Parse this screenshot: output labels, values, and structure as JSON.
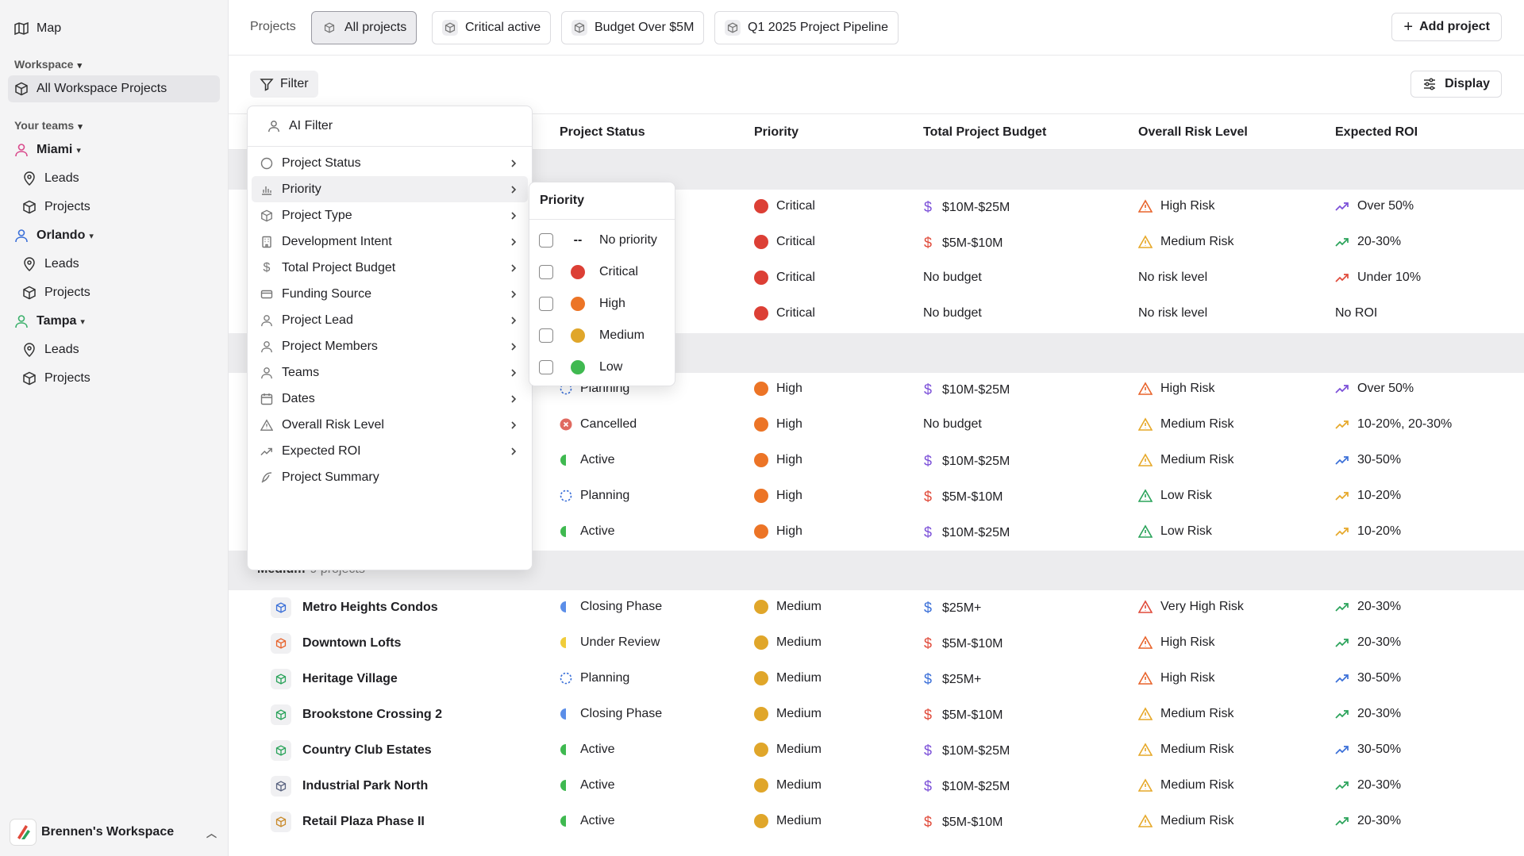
{
  "sidebar": {
    "map": "Map",
    "workspace_section": "Workspace",
    "all_workspace_projects": "All Workspace Projects",
    "teams_section": "Your teams",
    "teams": [
      {
        "name": "Miami",
        "color": "#d94a8c",
        "leads": "Leads",
        "projects": "Projects"
      },
      {
        "name": "Orlando",
        "color": "#3a6fd8",
        "leads": "Leads",
        "projects": "Projects"
      },
      {
        "name": "Tampa",
        "color": "#3bb06b",
        "leads": "Leads",
        "projects": "Projects"
      }
    ],
    "workspace_name": "Brennen's Workspace"
  },
  "topbar": {
    "label": "Projects",
    "tabs": [
      "All projects",
      "Critical active",
      "Budget Over $5M",
      "Q1 2025 Project Pipeline"
    ],
    "add_project": "Add project"
  },
  "toolbar": {
    "filter": "Filter",
    "display": "Display"
  },
  "table": {
    "columns": [
      "Project Status",
      "Priority",
      "Total Project Budget",
      "Overall Risk Level",
      "Expected ROI"
    ],
    "critical_rows": [
      {
        "priority": "Critical",
        "budget": "$10M-$25M",
        "budget_color": "#7b4fd8",
        "risk": "High Risk",
        "risk_color": "#e8642c",
        "roi": "Over 50%",
        "roi_color": "#7b4fd8"
      },
      {
        "priority": "Critical",
        "budget": "$5M-$10M",
        "budget_color": "#e04a3a",
        "risk": "Medium Risk",
        "risk_color": "#e6a829",
        "roi": "20-30%",
        "roi_color": "#2aa35a"
      },
      {
        "priority": "Critical",
        "budget": "No budget",
        "budget_color": "",
        "risk": "No risk level",
        "risk_color": "",
        "roi": "Under 10%",
        "roi_color": "#e04a3a"
      },
      {
        "priority": "Critical",
        "budget": "No budget",
        "budget_color": "",
        "risk": "No risk level",
        "risk_color": "",
        "roi": "No ROI",
        "roi_color": ""
      }
    ],
    "high_rows": [
      {
        "status": "Planning",
        "status_type": "planning",
        "priority": "High",
        "budget": "$10M-$25M",
        "budget_color": "#7b4fd8",
        "risk": "High Risk",
        "risk_color": "#e8642c",
        "roi": "Over 50%",
        "roi_color": "#7b4fd8"
      },
      {
        "status": "Cancelled",
        "status_type": "cancelled",
        "priority": "High",
        "budget": "No budget",
        "budget_color": "",
        "risk": "Medium Risk",
        "risk_color": "#e6a829",
        "roi": "10-20%, 20-30%",
        "roi_color": "#e6a829"
      },
      {
        "status": "Active",
        "status_type": "active",
        "priority": "High",
        "budget": "$10M-$25M",
        "budget_color": "#7b4fd8",
        "risk": "Medium Risk",
        "risk_color": "#e6a829",
        "roi": "30-50%",
        "roi_color": "#3a6fd8"
      },
      {
        "status": "Planning",
        "status_type": "planning",
        "priority": "High",
        "budget": "$5M-$10M",
        "budget_color": "#e04a3a",
        "risk": "Low Risk",
        "risk_color": "#2aa35a",
        "roi": "10-20%",
        "roi_color": "#e6a829"
      },
      {
        "status": "Active",
        "status_type": "active",
        "priority": "High",
        "budget": "$10M-$25M",
        "budget_color": "#7b4fd8",
        "risk": "Low Risk",
        "risk_color": "#2aa35a",
        "roi": "10-20%",
        "roi_color": "#e6a829"
      }
    ],
    "medium_group": {
      "label": "Medium",
      "count": "9 projects"
    },
    "medium_rows": [
      {
        "name": "Metro Heights Condos",
        "icon_color": "#3a6fd8",
        "status": "Closing Phase",
        "status_type": "closing",
        "priority": "Medium",
        "budget": "$25M+",
        "budget_color": "#3a6fd8",
        "risk": "Very High Risk",
        "risk_color": "#e04a3a",
        "roi": "20-30%",
        "roi_color": "#2aa35a"
      },
      {
        "name": "Downtown Lofts",
        "icon_color": "#e8642c",
        "status": "Under Review",
        "status_type": "review",
        "priority": "Medium",
        "budget": "$5M-$10M",
        "budget_color": "#e04a3a",
        "risk": "High Risk",
        "risk_color": "#e8642c",
        "roi": "20-30%",
        "roi_color": "#2aa35a"
      },
      {
        "name": "Heritage Village",
        "icon_color": "#2aa35a",
        "status": "Planning",
        "status_type": "planning",
        "priority": "Medium",
        "budget": "$25M+",
        "budget_color": "#3a6fd8",
        "risk": "High Risk",
        "risk_color": "#e8642c",
        "roi": "30-50%",
        "roi_color": "#3a6fd8"
      },
      {
        "name": "Brookstone Crossing 2",
        "icon_color": "#2aa35a",
        "status": "Closing Phase",
        "status_type": "closing",
        "priority": "Medium",
        "budget": "$5M-$10M",
        "budget_color": "#e04a3a",
        "risk": "Medium Risk",
        "risk_color": "#e6a829",
        "roi": "20-30%",
        "roi_color": "#2aa35a"
      },
      {
        "name": "Country Club Estates",
        "icon_color": "#2aa35a",
        "status": "Active",
        "status_type": "active",
        "priority": "Medium",
        "budget": "$10M-$25M",
        "budget_color": "#7b4fd8",
        "risk": "Medium Risk",
        "risk_color": "#e6a829",
        "roi": "30-50%",
        "roi_color": "#3a6fd8"
      },
      {
        "name": "Industrial Park North",
        "icon_color": "#5a6480",
        "status": "Active",
        "status_type": "active",
        "priority": "Medium",
        "budget": "$10M-$25M",
        "budget_color": "#7b4fd8",
        "risk": "Medium Risk",
        "risk_color": "#e6a829",
        "roi": "20-30%",
        "roi_color": "#2aa35a"
      },
      {
        "name": "Retail Plaza Phase II",
        "icon_color": "#c98a2a",
        "status": "Active",
        "status_type": "active",
        "priority": "Medium",
        "budget": "$5M-$10M",
        "budget_color": "#e04a3a",
        "risk": "Medium Risk",
        "risk_color": "#e6a829",
        "roi": "20-30%",
        "roi_color": "#2aa35a"
      }
    ]
  },
  "priority_colors": {
    "Critical": "#dc3f35",
    "High": "#ec7426",
    "Medium": "#e0a62a",
    "Low": "#3fb950"
  },
  "filter_menu": {
    "ai_filter": "AI Filter",
    "items": [
      "Project Status",
      "Priority",
      "Project Type",
      "Development Intent",
      "Total Project Budget",
      "Funding Source",
      "Project Lead",
      "Project Members",
      "Teams",
      "Dates",
      "Overall Risk Level",
      "Expected ROI",
      "Project Summary"
    ]
  },
  "priority_submenu": {
    "title": "Priority",
    "options": [
      {
        "label": "No priority",
        "glyph": "--"
      },
      {
        "label": "Critical",
        "color": "#dc3f35"
      },
      {
        "label": "High",
        "color": "#ec7426"
      },
      {
        "label": "Medium",
        "color": "#e0a62a"
      },
      {
        "label": "Low",
        "color": "#3fb950"
      }
    ]
  }
}
